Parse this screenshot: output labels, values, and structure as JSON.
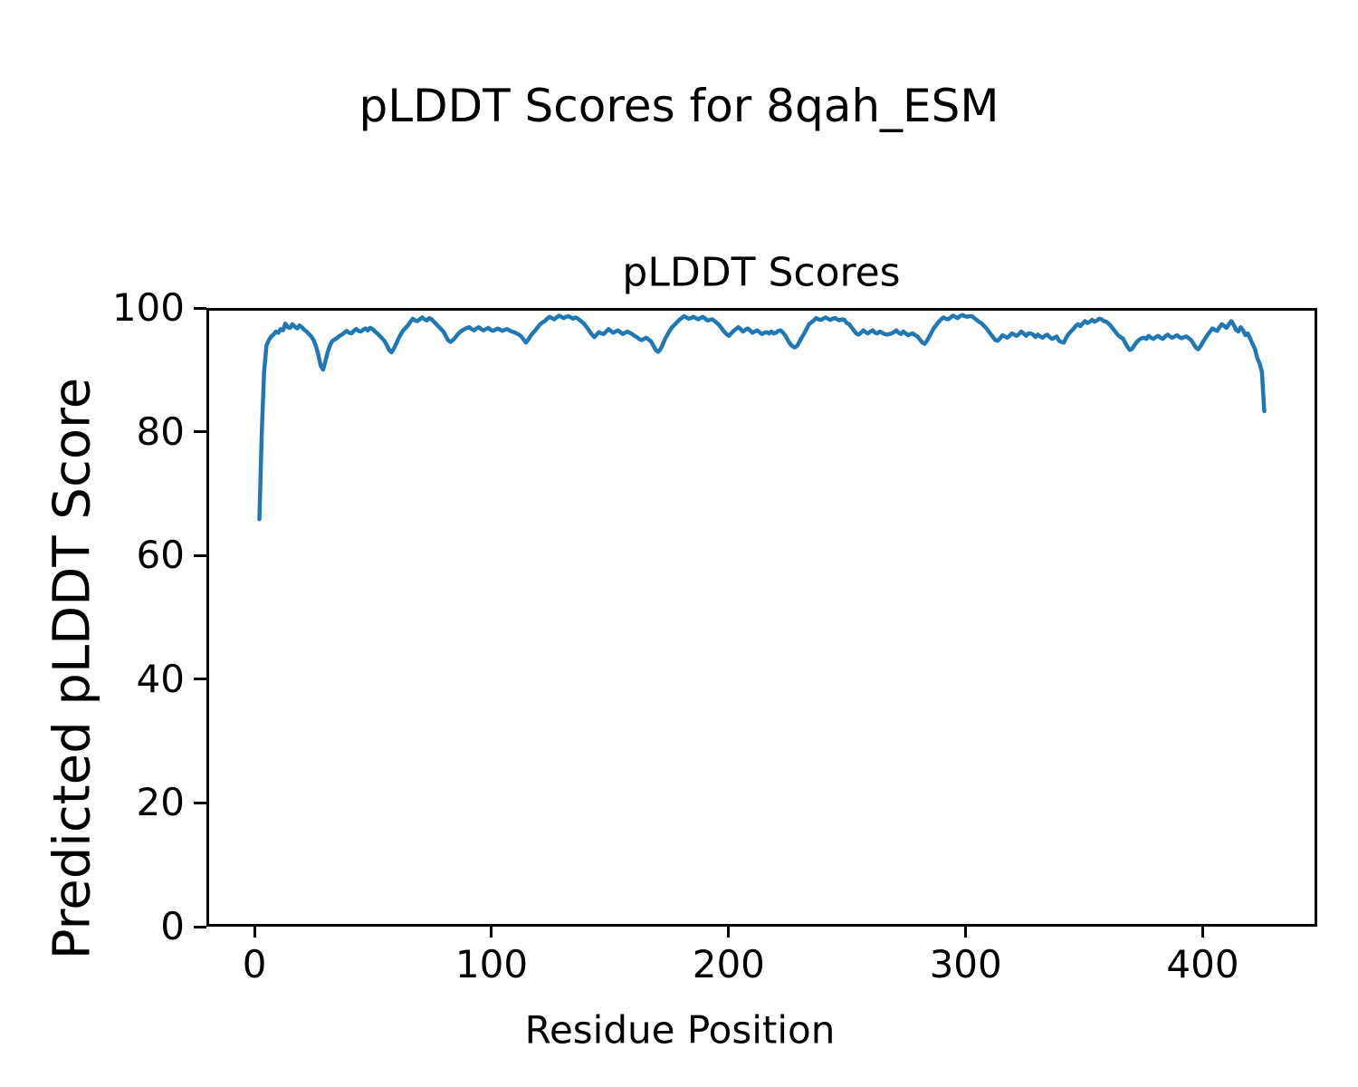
{
  "figure": {
    "title": "pLDDT Scores for 8qah_ESM"
  },
  "chart_data": {
    "type": "line",
    "title": "pLDDT Scores",
    "xlabel": "Residue Position",
    "ylabel": "Predicted pLDDT Score",
    "xlim": [
      -20.3,
      448.3
    ],
    "ylim": [
      0,
      100
    ],
    "x_ticks": [
      0,
      100,
      200,
      300,
      400
    ],
    "y_ticks": [
      0,
      20,
      40,
      60,
      80,
      100
    ],
    "grid": false,
    "legend_position": "none",
    "background_color": "#ffffff",
    "text_color": "#000000",
    "line_color": "#1f77b4",
    "line_width": 4.5,
    "series": [
      {
        "name": "pLDDT",
        "x_start": 1,
        "x_step": 1,
        "y_values": [
          66.0,
          80.0,
          90.0,
          94.3,
          95.2,
          95.8,
          96.1,
          96.6,
          96.4,
          97.0,
          96.8,
          97.9,
          97.3,
          97.2,
          97.8,
          97.4,
          97.1,
          97.6,
          97.3,
          96.9,
          96.6,
          96.2,
          95.8,
          95.2,
          94.2,
          92.8,
          91.0,
          90.4,
          91.8,
          93.3,
          94.4,
          95.1,
          95.3,
          95.6,
          95.9,
          96.1,
          96.4,
          96.7,
          96.4,
          96.3,
          96.7,
          97.0,
          96.7,
          96.6,
          96.9,
          97.1,
          96.8,
          97.2,
          97.0,
          96.6,
          96.3,
          95.9,
          95.5,
          95.1,
          94.4,
          93.6,
          93.2,
          93.8,
          94.6,
          95.5,
          96.2,
          96.8,
          97.2,
          97.6,
          98.2,
          98.7,
          98.4,
          98.3,
          98.6,
          98.9,
          98.6,
          98.4,
          98.8,
          98.6,
          98.2,
          97.8,
          97.4,
          97.0,
          96.6,
          95.9,
          95.2,
          94.9,
          95.2,
          95.6,
          96.1,
          96.5,
          96.8,
          97.0,
          97.2,
          97.3,
          97.0,
          96.8,
          97.1,
          97.3,
          97.0,
          96.8,
          97.0,
          97.2,
          96.9,
          96.7,
          96.9,
          97.1,
          96.9,
          96.7,
          96.9,
          97.0,
          96.8,
          96.6,
          96.5,
          96.3,
          96.1,
          95.8,
          95.3,
          94.8,
          95.3,
          95.9,
          96.4,
          96.8,
          97.3,
          97.8,
          98.1,
          98.3,
          98.7,
          99.0,
          98.8,
          98.6,
          98.9,
          99.2,
          99.0,
          98.8,
          99.0,
          99.1,
          98.9,
          98.7,
          98.9,
          98.7,
          98.4,
          98.1,
          97.7,
          97.2,
          96.6,
          96.1,
          95.7,
          96.1,
          96.5,
          96.3,
          96.2,
          96.6,
          97.0,
          96.7,
          96.4,
          96.6,
          96.8,
          96.5,
          96.2,
          96.4,
          96.6,
          96.4,
          96.2,
          95.9,
          95.7,
          95.4,
          95.2,
          95.4,
          95.6,
          95.3,
          95.0,
          94.3,
          93.6,
          93.3,
          93.7,
          94.5,
          95.4,
          96.1,
          96.8,
          97.3,
          97.7,
          98.1,
          98.5,
          98.8,
          99.1,
          98.9,
          98.7,
          98.8,
          99.0,
          98.8,
          98.6,
          98.8,
          99.0,
          98.7,
          98.4,
          98.5,
          98.6,
          98.3,
          98.0,
          97.6,
          97.1,
          96.6,
          96.2,
          95.9,
          96.3,
          96.7,
          97.0,
          97.3,
          97.0,
          96.6,
          96.9,
          97.1,
          96.8,
          96.4,
          96.6,
          96.8,
          96.5,
          96.2,
          96.4,
          96.5,
          96.3,
          96.6,
          96.3,
          96.4,
          96.7,
          96.8,
          96.4,
          95.9,
          95.2,
          94.6,
          94.2,
          94.0,
          94.3,
          95.0,
          95.7,
          96.3,
          97.1,
          97.8,
          98.1,
          98.4,
          98.8,
          98.6,
          98.5,
          98.7,
          98.9,
          98.7,
          98.5,
          98.7,
          98.8,
          98.6,
          98.4,
          98.6,
          98.5,
          98.0,
          97.8,
          97.3,
          96.8,
          96.3,
          96.1,
          96.4,
          96.8,
          96.5,
          96.3,
          96.6,
          96.8,
          96.4,
          96.3,
          96.6,
          96.4,
          96.2,
          96.1,
          96.2,
          96.3,
          96.5,
          96.8,
          96.4,
          96.2,
          96.6,
          96.3,
          96.0,
          96.2,
          96.3,
          96.0,
          95.8,
          95.3,
          94.8,
          94.6,
          95.1,
          95.8,
          96.5,
          97.2,
          97.7,
          98.2,
          98.6,
          98.9,
          98.7,
          98.6,
          98.9,
          99.2,
          99.0,
          98.8,
          99.1,
          99.3,
          99.1,
          99.0,
          99.1,
          99.1,
          98.8,
          98.5,
          98.2,
          98.0,
          97.6,
          97.2,
          96.7,
          96.2,
          95.7,
          95.2,
          95.1,
          95.5,
          96.0,
          95.8,
          95.6,
          95.9,
          96.3,
          96.1,
          95.9,
          96.2,
          96.6,
          96.3,
          95.9,
          96.3,
          96.3,
          96.1,
          95.7,
          96.1,
          95.8,
          95.6,
          95.9,
          96.1,
          95.7,
          95.4,
          95.6,
          95.8,
          95.1,
          94.9,
          94.8,
          95.6,
          96.2,
          96.6,
          97.0,
          97.5,
          97.8,
          97.5,
          97.9,
          98.3,
          98.0,
          98.2,
          98.5,
          98.2,
          98.4,
          98.7,
          98.6,
          98.3,
          98.2,
          97.9,
          97.5,
          97.0,
          96.5,
          96.0,
          95.7,
          95.5,
          94.8,
          94.1,
          93.6,
          93.8,
          94.4,
          94.9,
          95.3,
          95.5,
          95.6,
          95.4,
          95.9,
          95.6,
          95.4,
          95.7,
          95.9,
          95.6,
          95.4,
          95.8,
          96.1,
          95.8,
          95.6,
          95.8,
          96.0,
          95.7,
          95.5,
          95.7,
          95.8,
          95.5,
          95.2,
          94.6,
          94.0,
          93.7,
          94.2,
          94.9,
          95.5,
          96.1,
          96.6,
          97.1,
          96.9,
          96.7,
          97.3,
          97.8,
          97.5,
          97.2,
          97.8,
          98.3,
          97.7,
          96.9,
          96.6,
          97.3,
          96.8,
          96.0,
          96.3,
          95.5,
          94.6,
          93.8,
          92.3,
          91.4,
          90.0,
          83.6
        ]
      }
    ]
  }
}
